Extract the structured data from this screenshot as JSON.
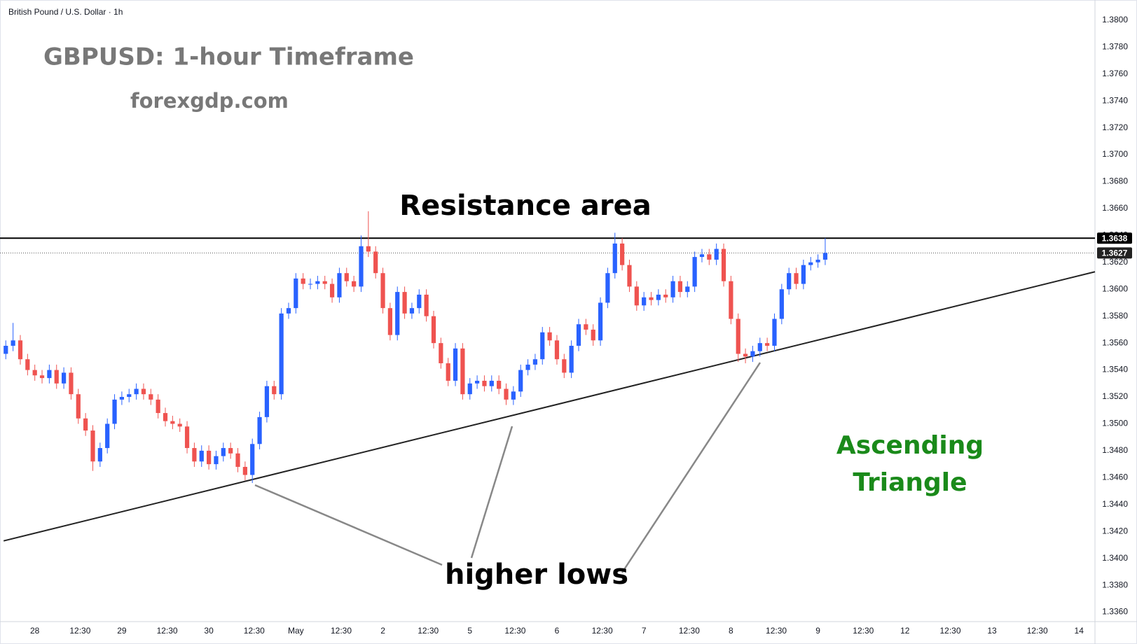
{
  "chart_data": {
    "type": "candlestick",
    "header": "British Pound / U.S. Dollar · 1h",
    "title": "GBPUSD: 1-hour Timeframe",
    "subtitle": "forexgdp.com",
    "annotations": {
      "resistance": "Resistance area",
      "lows": "higher lows",
      "pattern": [
        "Ascending",
        "Triangle"
      ]
    },
    "up_color": "#2962ff",
    "down_color": "#ef5350",
    "x": [
      -8,
      -6,
      -4,
      -2,
      0,
      2,
      4,
      6,
      8,
      10,
      12,
      14,
      16,
      18,
      20,
      22,
      24,
      26,
      28,
      30,
      32,
      34,
      36,
      38,
      40,
      42,
      44,
      46,
      48,
      50,
      52,
      54,
      56,
      58,
      60,
      62,
      64,
      66,
      68,
      70,
      72,
      74,
      76,
      78,
      80,
      82,
      84,
      86,
      88,
      90,
      92,
      94,
      96,
      98,
      100,
      102,
      104,
      106,
      108,
      110,
      112,
      114,
      116,
      118,
      120,
      122,
      124,
      126,
      128,
      130,
      132,
      134,
      136,
      138,
      140,
      142,
      144,
      146,
      148,
      150,
      152,
      154,
      156,
      158,
      160,
      162,
      164,
      166,
      168,
      170,
      172,
      174,
      176,
      178,
      180,
      182,
      184,
      186,
      188,
      190,
      192,
      194,
      196,
      198,
      200,
      202,
      204,
      206,
      208,
      210,
      212,
      214,
      216,
      218
    ],
    "open": [
      1.3552,
      1.3558,
      1.3562,
      1.3548,
      1.354,
      1.3536,
      1.3534,
      1.354,
      1.353,
      1.3538,
      1.3522,
      1.3504,
      1.3495,
      1.3472,
      1.3482,
      1.35,
      1.3518,
      1.352,
      1.3522,
      1.3526,
      1.3522,
      1.3518,
      1.3508,
      1.3502,
      1.35,
      1.3498,
      1.3482,
      1.3472,
      1.348,
      1.347,
      1.3476,
      1.3482,
      1.3478,
      1.3468,
      1.3462,
      1.3485,
      1.3505,
      1.3528,
      1.3522,
      1.3582,
      1.3586,
      1.3608,
      1.3604,
      1.3604,
      1.3606,
      1.3604,
      1.3594,
      1.3612,
      1.3606,
      1.3602,
      1.3632,
      1.3628,
      1.3612,
      1.3586,
      1.3566,
      1.3598,
      1.3582,
      1.3586,
      1.3596,
      1.358,
      1.356,
      1.3545,
      1.3532,
      1.3556,
      1.3522,
      1.353,
      1.3532,
      1.3528,
      1.3532,
      1.3526,
      1.3518,
      1.3524,
      1.354,
      1.3544,
      1.3548,
      1.3568,
      1.3562,
      1.3548,
      1.3538,
      1.3558,
      1.3574,
      1.357,
      1.3562,
      1.359,
      1.3612,
      1.3634,
      1.3618,
      1.3602,
      1.3588,
      1.3594,
      1.3592,
      1.3596,
      1.3594,
      1.3606,
      1.3598,
      1.3602,
      1.3624,
      1.3626,
      1.3622,
      1.363,
      1.3606,
      1.3578,
      1.3552,
      1.355,
      1.3554,
      1.356,
      1.3558,
      1.3578,
      1.36,
      1.3612,
      1.3604,
      1.3618,
      1.362,
      1.3622
    ],
    "high": [
      1.3562,
      1.3575,
      1.3566,
      1.3552,
      1.3544,
      1.354,
      1.3544,
      1.3544,
      1.3542,
      1.3542,
      1.3526,
      1.3508,
      1.3499,
      1.3486,
      1.3504,
      1.3522,
      1.3524,
      1.3526,
      1.353,
      1.353,
      1.3526,
      1.3522,
      1.3512,
      1.3506,
      1.3504,
      1.3502,
      1.3486,
      1.3484,
      1.3484,
      1.348,
      1.3486,
      1.3486,
      1.3482,
      1.3472,
      1.3489,
      1.3509,
      1.3532,
      1.3532,
      1.3586,
      1.359,
      1.3612,
      1.3612,
      1.3608,
      1.361,
      1.361,
      1.3608,
      1.3616,
      1.3616,
      1.361,
      1.364,
      1.3658,
      1.3632,
      1.3616,
      1.359,
      1.3602,
      1.3602,
      1.359,
      1.36,
      1.36,
      1.3584,
      1.3564,
      1.3549,
      1.356,
      1.356,
      1.3534,
      1.3536,
      1.3536,
      1.3536,
      1.3536,
      1.353,
      1.3528,
      1.3544,
      1.3548,
      1.3552,
      1.3572,
      1.3572,
      1.3566,
      1.3552,
      1.3562,
      1.3578,
      1.3578,
      1.3574,
      1.3594,
      1.3616,
      1.3642,
      1.3638,
      1.3622,
      1.3606,
      1.3598,
      1.3598,
      1.36,
      1.36,
      1.361,
      1.361,
      1.3606,
      1.3628,
      1.363,
      1.363,
      1.3634,
      1.3634,
      1.361,
      1.3582,
      1.3556,
      1.3558,
      1.3564,
      1.3564,
      1.3582,
      1.3604,
      1.3616,
      1.3616,
      1.3622,
      1.3624,
      1.3626,
      1.3638
    ],
    "low": [
      1.3548,
      1.3554,
      1.3544,
      1.3536,
      1.3532,
      1.353,
      1.353,
      1.3526,
      1.3526,
      1.3518,
      1.35,
      1.3491,
      1.3465,
      1.3468,
      1.3478,
      1.3496,
      1.3514,
      1.3516,
      1.3518,
      1.3518,
      1.3514,
      1.3504,
      1.3498,
      1.3496,
      1.3494,
      1.3478,
      1.3468,
      1.3468,
      1.3466,
      1.3466,
      1.3472,
      1.3474,
      1.3464,
      1.3458,
      1.3456,
      1.3481,
      1.3501,
      1.3518,
      1.3518,
      1.3578,
      1.3582,
      1.36,
      1.36,
      1.36,
      1.36,
      1.359,
      1.359,
      1.3602,
      1.3598,
      1.3598,
      1.3624,
      1.3608,
      1.3582,
      1.3562,
      1.3562,
      1.3578,
      1.3578,
      1.3582,
      1.3576,
      1.3556,
      1.3541,
      1.3528,
      1.3528,
      1.3518,
      1.3518,
      1.3526,
      1.3524,
      1.3524,
      1.3522,
      1.3514,
      1.3514,
      1.352,
      1.3536,
      1.354,
      1.3544,
      1.3558,
      1.3544,
      1.3534,
      1.3534,
      1.3554,
      1.3566,
      1.3558,
      1.3558,
      1.3586,
      1.3608,
      1.3614,
      1.3598,
      1.3584,
      1.3584,
      1.3588,
      1.3588,
      1.359,
      1.359,
      1.3594,
      1.3594,
      1.3598,
      1.362,
      1.3618,
      1.3618,
      1.3602,
      1.3574,
      1.3546,
      1.3545,
      1.3546,
      1.355,
      1.3554,
      1.3554,
      1.3574,
      1.3596,
      1.36,
      1.36,
      1.3614,
      1.3616,
      1.3618
    ],
    "close": [
      1.3558,
      1.3562,
      1.3548,
      1.354,
      1.3536,
      1.3534,
      1.354,
      1.353,
      1.3538,
      1.3522,
      1.3504,
      1.3495,
      1.3472,
      1.3482,
      1.35,
      1.3518,
      1.352,
      1.3522,
      1.3526,
      1.3522,
      1.3518,
      1.3508,
      1.3502,
      1.35,
      1.3498,
      1.3482,
      1.3472,
      1.348,
      1.347,
      1.3476,
      1.3482,
      1.3478,
      1.3468,
      1.3462,
      1.3485,
      1.3505,
      1.3528,
      1.3522,
      1.3582,
      1.3586,
      1.3608,
      1.3604,
      1.3604,
      1.3606,
      1.3604,
      1.3594,
      1.3612,
      1.3606,
      1.3602,
      1.3632,
      1.3628,
      1.3612,
      1.3586,
      1.3566,
      1.3598,
      1.3582,
      1.3586,
      1.3596,
      1.358,
      1.356,
      1.3545,
      1.3532,
      1.3556,
      1.3522,
      1.353,
      1.3532,
      1.3528,
      1.3532,
      1.3526,
      1.3518,
      1.3524,
      1.354,
      1.3544,
      1.3548,
      1.3568,
      1.3562,
      1.3548,
      1.3538,
      1.3558,
      1.3574,
      1.357,
      1.3562,
      1.359,
      1.3612,
      1.3634,
      1.3618,
      1.3602,
      1.3588,
      1.3594,
      1.3592,
      1.3596,
      1.3594,
      1.3606,
      1.3598,
      1.3602,
      1.3624,
      1.3626,
      1.3622,
      1.363,
      1.3606,
      1.3578,
      1.3552,
      1.355,
      1.3554,
      1.356,
      1.3558,
      1.3578,
      1.36,
      1.3612,
      1.3604,
      1.3618,
      1.362,
      1.3622,
      1.3627
    ],
    "resistance_level": 1.3638,
    "last_price": 1.3627,
    "trendline": {
      "x": [
        -8.6,
        292.4
      ],
      "y": [
        1.3413,
        1.3613
      ]
    },
    "xlim": [
      -9.6,
      292.4
    ],
    "xticks": [
      {
        "value": 0,
        "label": "28"
      },
      {
        "value": 12.5,
        "label": "12:30"
      },
      {
        "value": 24,
        "label": "29"
      },
      {
        "value": 36.5,
        "label": "12:30"
      },
      {
        "value": 48,
        "label": "30"
      },
      {
        "value": 60.5,
        "label": "12:30"
      },
      {
        "value": 72,
        "label": "May"
      },
      {
        "value": 84.5,
        "label": "12:30"
      },
      {
        "value": 96,
        "label": "2"
      },
      {
        "value": 108.5,
        "label": "12:30"
      },
      {
        "value": 120,
        "label": "5"
      },
      {
        "value": 132.5,
        "label": "12:30"
      },
      {
        "value": 144,
        "label": "6"
      },
      {
        "value": 156.5,
        "label": "12:30"
      },
      {
        "value": 168,
        "label": "7"
      },
      {
        "value": 180.5,
        "label": "12:30"
      },
      {
        "value": 192,
        "label": "8"
      },
      {
        "value": 204.5,
        "label": "12:30"
      },
      {
        "value": 216,
        "label": "9"
      },
      {
        "value": 228.5,
        "label": "12:30"
      },
      {
        "value": 240,
        "label": "12"
      },
      {
        "value": 252.5,
        "label": "12:30"
      },
      {
        "value": 264,
        "label": "13"
      },
      {
        "value": 276.5,
        "label": "12:30"
      },
      {
        "value": 288,
        "label": "14"
      }
    ],
    "ylim": [
      1.3353,
      1.3815
    ],
    "yticks": [
      {
        "value": 1.336,
        "label": "1.3360"
      },
      {
        "value": 1.338,
        "label": "1.3380"
      },
      {
        "value": 1.34,
        "label": "1.3400"
      },
      {
        "value": 1.342,
        "label": "1.3420"
      },
      {
        "value": 1.344,
        "label": "1.3440"
      },
      {
        "value": 1.346,
        "label": "1.3460"
      },
      {
        "value": 1.348,
        "label": "1.3480"
      },
      {
        "value": 1.35,
        "label": "1.3500"
      },
      {
        "value": 1.352,
        "label": "1.3520"
      },
      {
        "value": 1.354,
        "label": "1.3540"
      },
      {
        "value": 1.356,
        "label": "1.3560"
      },
      {
        "value": 1.358,
        "label": "1.3580"
      },
      {
        "value": 1.36,
        "label": "1.3600"
      },
      {
        "value": 1.362,
        "label": "1.3620"
      },
      {
        "value": 1.364,
        "label": "1.3640"
      },
      {
        "value": 1.366,
        "label": "1.3660"
      },
      {
        "value": 1.368,
        "label": "1.3680"
      },
      {
        "value": 1.37,
        "label": "1.3700"
      },
      {
        "value": 1.372,
        "label": "1.3720"
      },
      {
        "value": 1.374,
        "label": "1.3740"
      },
      {
        "value": 1.376,
        "label": "1.3760"
      },
      {
        "value": 1.378,
        "label": "1.3780"
      },
      {
        "value": 1.38,
        "label": "1.3800"
      }
    ],
    "grid": false
  }
}
